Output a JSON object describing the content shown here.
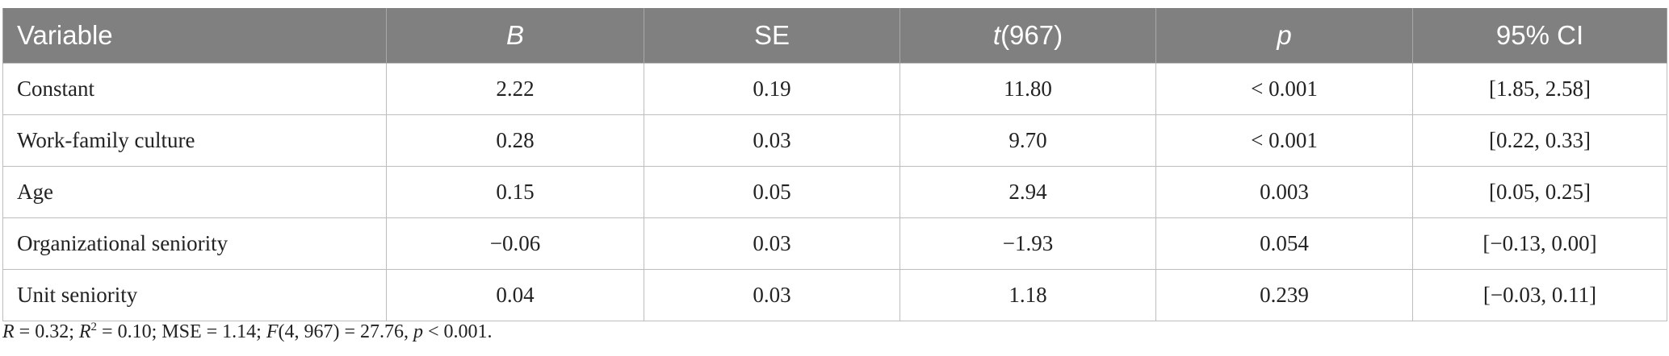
{
  "table": {
    "header": [
      "Variable",
      "B",
      "SE",
      [
        "t",
        "(967)"
      ],
      "p",
      "95% CI"
    ],
    "header_italic": [
      false,
      true,
      false,
      false,
      true,
      false
    ],
    "rows": [
      [
        "Constant",
        "2.22",
        "0.19",
        "11.80",
        "< 0.001",
        "[1.85, 2.58]"
      ],
      [
        "Work-family culture",
        "0.28",
        "0.03",
        "9.70",
        "< 0.001",
        "[0.22, 0.33]"
      ],
      [
        "Age",
        "0.15",
        "0.05",
        "2.94",
        "0.003",
        "[0.05, 0.25]"
      ],
      [
        "Organizational seniority",
        "−0.06",
        "0.03",
        "−1.93",
        "0.054",
        "[−0.13, 0.00]"
      ],
      [
        "Unit seniority",
        "0.04",
        "0.03",
        "1.18",
        "0.239",
        "[−0.03, 0.11]"
      ]
    ]
  },
  "footnote": [
    [
      "R",
      "i"
    ],
    [
      " = 0.32; "
    ],
    [
      "R",
      "i"
    ],
    [
      "2",
      "sup"
    ],
    [
      " = 0.10; MSE = 1.14; "
    ],
    [
      "F",
      "i"
    ],
    [
      "(4, 967) = 27.76, "
    ],
    [
      "p",
      "i"
    ],
    [
      " < 0.001."
    ]
  ]
}
